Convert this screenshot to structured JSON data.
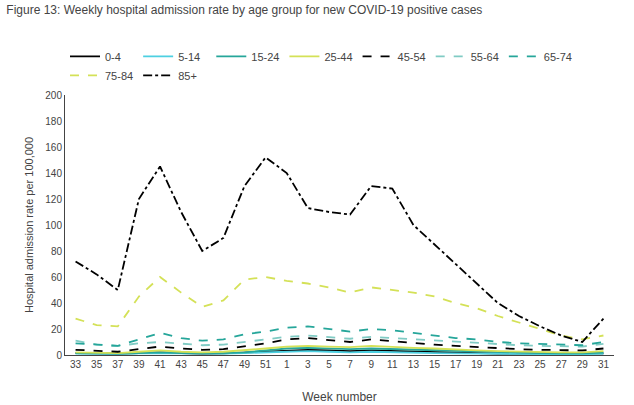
{
  "chart_data": {
    "type": "line",
    "title": "Figure 13: Weekly hospital admission rate by age group for new COVID-19 positive cases",
    "xlabel": "Week number",
    "ylabel": "Hospital admission rate per 100,000",
    "categories": [
      "33",
      "35",
      "37",
      "39",
      "41",
      "43",
      "45",
      "47",
      "49",
      "51",
      "1",
      "3",
      "5",
      "7",
      "9",
      "11",
      "13",
      "15",
      "17",
      "19",
      "21",
      "23",
      "25",
      "27",
      "29",
      "31"
    ],
    "series": [
      {
        "name": "0-4",
        "color": "#000000",
        "line_style": "solid",
        "values": [
          1.5,
          1.2,
          1.0,
          1.5,
          2.0,
          1.5,
          1.0,
          1.2,
          1.8,
          2.5,
          3.5,
          4.0,
          3.5,
          3.0,
          3.5,
          3.0,
          2.5,
          2.0,
          1.5,
          1.2,
          1.0,
          1.0,
          1.0,
          0.8,
          0.8,
          1.2
        ]
      },
      {
        "name": "5-14",
        "color": "#4dd0e1",
        "line_style": "solid",
        "values": [
          1.0,
          0.8,
          0.8,
          1.2,
          1.5,
          1.2,
          1.0,
          1.0,
          1.5,
          2.0,
          2.5,
          3.0,
          2.5,
          2.0,
          2.5,
          2.0,
          1.8,
          1.5,
          1.2,
          1.0,
          0.8,
          0.8,
          0.8,
          0.6,
          0.6,
          1.0
        ]
      },
      {
        "name": "15-24",
        "color": "#26a69a",
        "line_style": "solid",
        "values": [
          1.5,
          1.2,
          1.0,
          1.5,
          2.0,
          1.5,
          1.2,
          1.5,
          2.0,
          3.5,
          5.0,
          5.5,
          5.0,
          4.5,
          5.0,
          4.5,
          4.0,
          3.5,
          3.0,
          2.5,
          2.0,
          1.8,
          1.5,
          1.2,
          1.2,
          1.8
        ]
      },
      {
        "name": "25-44",
        "color": "#d4e157",
        "line_style": "solid",
        "values": [
          2.0,
          1.5,
          1.5,
          2.5,
          3.5,
          2.5,
          2.0,
          2.5,
          3.5,
          5.0,
          6.5,
          7.0,
          6.5,
          6.0,
          7.0,
          6.0,
          5.5,
          5.0,
          4.0,
          3.5,
          3.0,
          2.5,
          2.5,
          2.0,
          2.0,
          3.0
        ]
      },
      {
        "name": "45-54",
        "color": "#000000",
        "line_style": "dashed",
        "values": [
          4.0,
          3.0,
          2.5,
          4.5,
          6.5,
          5.0,
          4.0,
          4.5,
          6.5,
          9.0,
          12.0,
          13.0,
          11.5,
          10.0,
          12.0,
          10.5,
          9.0,
          8.0,
          7.0,
          6.0,
          5.0,
          4.5,
          4.0,
          3.5,
          3.5,
          5.0
        ]
      },
      {
        "name": "55-64",
        "color": "#80cbc4",
        "line_style": "dashed",
        "values": [
          11.0,
          8.0,
          7.0,
          9.0,
          10.0,
          8.5,
          7.5,
          8.0,
          10.0,
          12.0,
          14.0,
          15.0,
          13.5,
          12.5,
          14.0,
          13.0,
          12.0,
          11.0,
          10.0,
          9.0,
          8.0,
          7.5,
          7.0,
          6.5,
          6.5,
          8.5
        ]
      },
      {
        "name": "65-74",
        "color": "#26a69a",
        "line_style": "dashed",
        "values": [
          9.0,
          8.0,
          7.0,
          12.0,
          17.0,
          13.0,
          11.0,
          12.0,
          16.0,
          18.0,
          21.0,
          22.0,
          20.0,
          18.0,
          20.0,
          19.0,
          17.0,
          15.0,
          13.0,
          12.0,
          10.0,
          9.0,
          8.5,
          7.5,
          7.5,
          10.0
        ]
      },
      {
        "name": "75-84",
        "color": "#d4e157",
        "line_style": "dashed",
        "values": [
          28.0,
          23.0,
          22.0,
          45.0,
          60.0,
          48.0,
          37.0,
          42.0,
          58.0,
          60.0,
          57.0,
          55.0,
          52.0,
          48.0,
          52.0,
          50.0,
          48.0,
          45.0,
          40.0,
          36.0,
          30.0,
          25.0,
          20.0,
          15.0,
          12.0,
          15.0
        ]
      },
      {
        "name": "85+",
        "color": "#000000",
        "line_style": "dashdot",
        "values": [
          72.0,
          62.0,
          50.0,
          120.0,
          145.0,
          110.0,
          80.0,
          90.0,
          130.0,
          152.0,
          140.0,
          113.0,
          110.0,
          108.0,
          130.0,
          128.0,
          100.0,
          85.0,
          70.0,
          55.0,
          40.0,
          30.0,
          22.0,
          15.0,
          10.0,
          28.0
        ]
      }
    ],
    "ylim": [
      0,
      200
    ],
    "yticks": [
      0,
      20,
      40,
      60,
      80,
      100,
      120,
      140,
      160,
      180,
      200
    ],
    "grid": false,
    "legend": "top"
  }
}
